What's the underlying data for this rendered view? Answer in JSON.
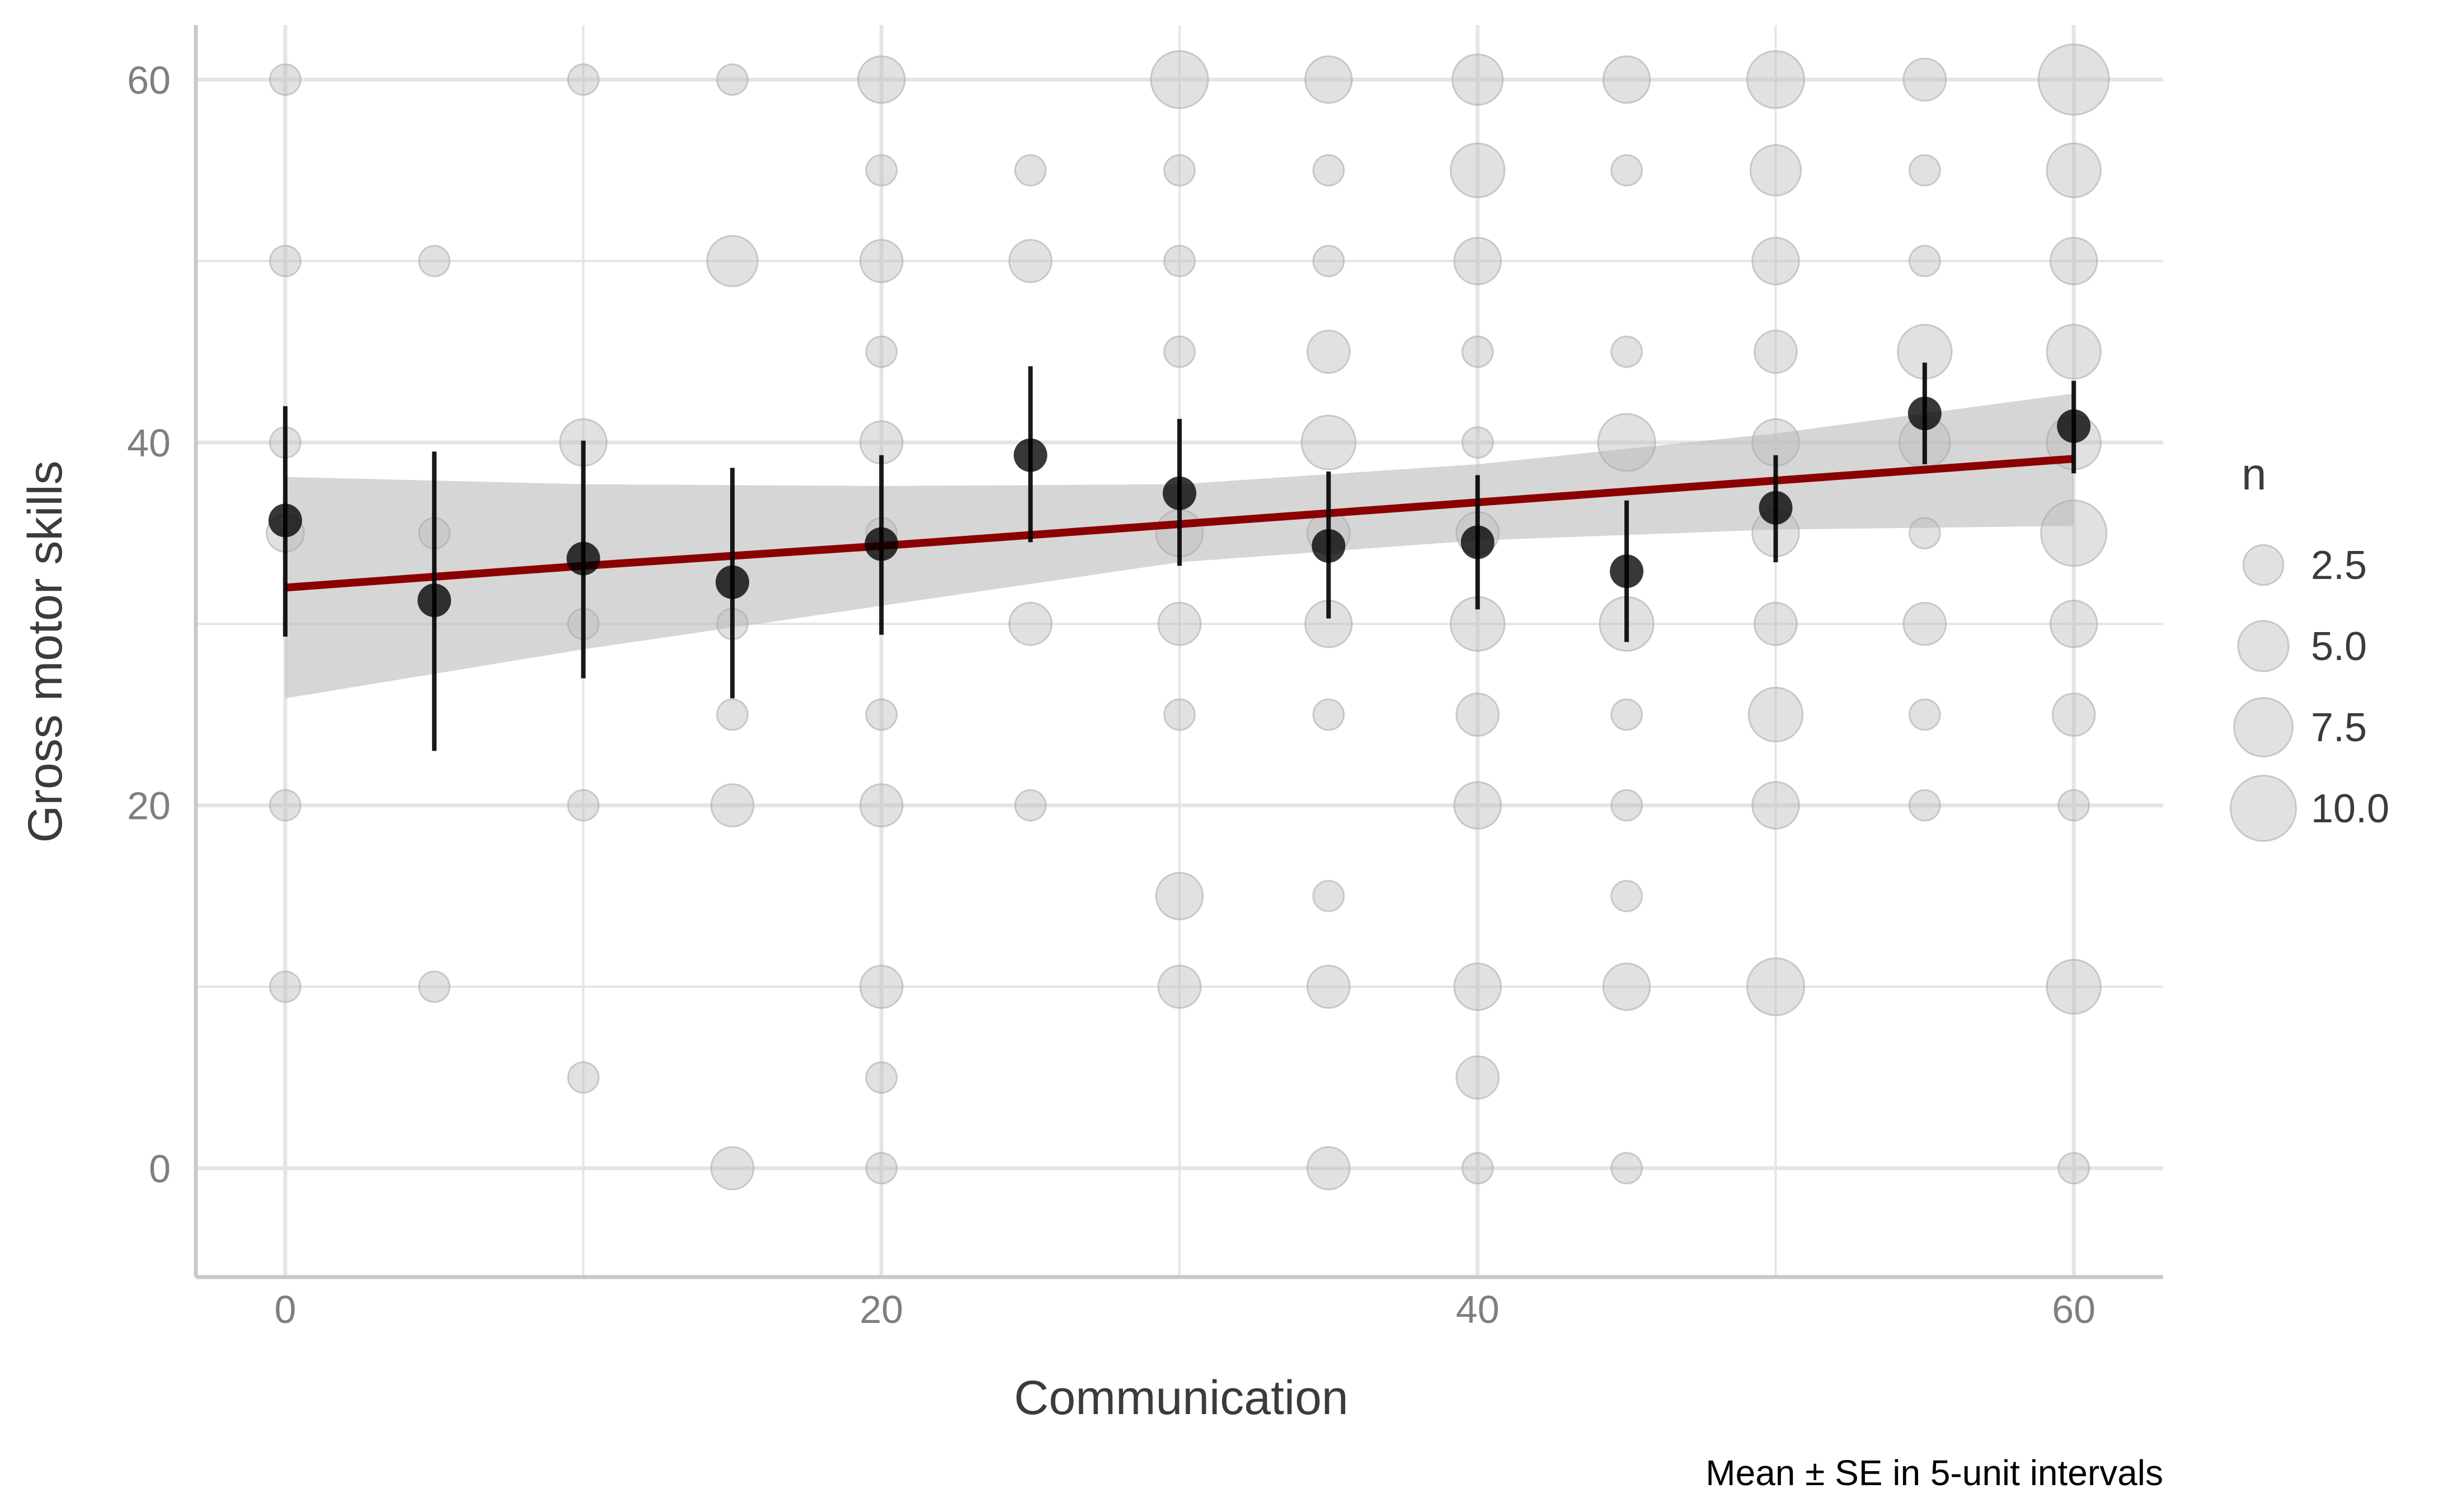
{
  "chart_data": {
    "type": "scatter",
    "title": "",
    "xlabel": "Communication",
    "ylabel": "Gross motor skills",
    "caption": "Mean ± SE in 5-unit intervals",
    "xlim": [
      -3,
      63
    ],
    "ylim": [
      -6,
      63
    ],
    "x_ticks": [
      0,
      20,
      40,
      60
    ],
    "y_ticks": [
      0,
      20,
      40,
      60
    ],
    "x_tick_labels": [
      "0",
      "20",
      "40",
      "60"
    ],
    "y_tick_labels": [
      "0",
      "20",
      "40",
      "60"
    ],
    "grid": true,
    "legend": {
      "title": "n",
      "position": "right",
      "entries": [
        {
          "label": "2.5",
          "n": 2.5
        },
        {
          "label": "5.0",
          "n": 5.0
        },
        {
          "label": "7.5",
          "n": 7.5
        },
        {
          "label": "10.0",
          "n": 10.0
        }
      ]
    },
    "colors": {
      "bubble": "#bdbdbd",
      "mean_point": "#000000",
      "error_bar": "#000000",
      "trend_line": "#8b0000",
      "confidence_band": "#bdbdbd",
      "grid": "#e5e5e5",
      "axis": "#c8c8c8"
    },
    "bubbles": [
      {
        "x": 0,
        "y": 60,
        "n": 1
      },
      {
        "x": 0,
        "y": 50,
        "n": 1
      },
      {
        "x": 0,
        "y": 40,
        "n": 1
      },
      {
        "x": 0,
        "y": 35,
        "n": 2
      },
      {
        "x": 0,
        "y": 20,
        "n": 1
      },
      {
        "x": 0,
        "y": 10,
        "n": 1
      },
      {
        "x": 5,
        "y": 50,
        "n": 1
      },
      {
        "x": 5,
        "y": 35,
        "n": 1
      },
      {
        "x": 5,
        "y": 10,
        "n": 1
      },
      {
        "x": 10,
        "y": 60,
        "n": 1
      },
      {
        "x": 10,
        "y": 40,
        "n": 4
      },
      {
        "x": 10,
        "y": 30,
        "n": 1
      },
      {
        "x": 10,
        "y": 20,
        "n": 1
      },
      {
        "x": 10,
        "y": 5,
        "n": 1
      },
      {
        "x": 15,
        "y": 60,
        "n": 1
      },
      {
        "x": 15,
        "y": 50,
        "n": 5
      },
      {
        "x": 15,
        "y": 30,
        "n": 1
      },
      {
        "x": 15,
        "y": 25,
        "n": 1
      },
      {
        "x": 15,
        "y": 20,
        "n": 3
      },
      {
        "x": 15,
        "y": 0,
        "n": 3
      },
      {
        "x": 20,
        "y": 60,
        "n": 4
      },
      {
        "x": 20,
        "y": 55,
        "n": 1
      },
      {
        "x": 20,
        "y": 50,
        "n": 3
      },
      {
        "x": 20,
        "y": 45,
        "n": 1
      },
      {
        "x": 20,
        "y": 40,
        "n": 3
      },
      {
        "x": 20,
        "y": 35,
        "n": 1
      },
      {
        "x": 20,
        "y": 25,
        "n": 1
      },
      {
        "x": 20,
        "y": 20,
        "n": 3
      },
      {
        "x": 20,
        "y": 10,
        "n": 3
      },
      {
        "x": 20,
        "y": 5,
        "n": 1
      },
      {
        "x": 20,
        "y": 0,
        "n": 1
      },
      {
        "x": 25,
        "y": 55,
        "n": 1
      },
      {
        "x": 25,
        "y": 50,
        "n": 3
      },
      {
        "x": 25,
        "y": 30,
        "n": 3
      },
      {
        "x": 25,
        "y": 20,
        "n": 1
      },
      {
        "x": 30,
        "y": 60,
        "n": 7
      },
      {
        "x": 30,
        "y": 55,
        "n": 1
      },
      {
        "x": 30,
        "y": 50,
        "n": 1
      },
      {
        "x": 30,
        "y": 45,
        "n": 1
      },
      {
        "x": 30,
        "y": 35,
        "n": 4
      },
      {
        "x": 30,
        "y": 30,
        "n": 3
      },
      {
        "x": 30,
        "y": 25,
        "n": 1
      },
      {
        "x": 30,
        "y": 15,
        "n": 4
      },
      {
        "x": 30,
        "y": 10,
        "n": 3
      },
      {
        "x": 35,
        "y": 60,
        "n": 4
      },
      {
        "x": 35,
        "y": 55,
        "n": 1
      },
      {
        "x": 35,
        "y": 50,
        "n": 1
      },
      {
        "x": 35,
        "y": 45,
        "n": 3
      },
      {
        "x": 35,
        "y": 40,
        "n": 6
      },
      {
        "x": 35,
        "y": 35,
        "n": 3
      },
      {
        "x": 35,
        "y": 30,
        "n": 4
      },
      {
        "x": 35,
        "y": 25,
        "n": 1
      },
      {
        "x": 35,
        "y": 15,
        "n": 1
      },
      {
        "x": 35,
        "y": 10,
        "n": 3
      },
      {
        "x": 35,
        "y": 0,
        "n": 3
      },
      {
        "x": 40,
        "y": 60,
        "n": 5
      },
      {
        "x": 40,
        "y": 55,
        "n": 6
      },
      {
        "x": 40,
        "y": 50,
        "n": 4
      },
      {
        "x": 40,
        "y": 45,
        "n": 1
      },
      {
        "x": 40,
        "y": 40,
        "n": 1
      },
      {
        "x": 40,
        "y": 35,
        "n": 3
      },
      {
        "x": 40,
        "y": 30,
        "n": 6
      },
      {
        "x": 40,
        "y": 25,
        "n": 3
      },
      {
        "x": 40,
        "y": 20,
        "n": 4
      },
      {
        "x": 40,
        "y": 10,
        "n": 4
      },
      {
        "x": 40,
        "y": 5,
        "n": 3
      },
      {
        "x": 40,
        "y": 0,
        "n": 1
      },
      {
        "x": 45,
        "y": 60,
        "n": 4
      },
      {
        "x": 45,
        "y": 55,
        "n": 1
      },
      {
        "x": 45,
        "y": 45,
        "n": 1
      },
      {
        "x": 45,
        "y": 40,
        "n": 7
      },
      {
        "x": 45,
        "y": 30,
        "n": 6
      },
      {
        "x": 45,
        "y": 25,
        "n": 1
      },
      {
        "x": 45,
        "y": 20,
        "n": 1
      },
      {
        "x": 45,
        "y": 15,
        "n": 1
      },
      {
        "x": 45,
        "y": 10,
        "n": 4
      },
      {
        "x": 45,
        "y": 0,
        "n": 1
      },
      {
        "x": 50,
        "y": 60,
        "n": 7
      },
      {
        "x": 50,
        "y": 55,
        "n": 5
      },
      {
        "x": 50,
        "y": 50,
        "n": 4
      },
      {
        "x": 50,
        "y": 45,
        "n": 3
      },
      {
        "x": 50,
        "y": 40,
        "n": 4
      },
      {
        "x": 50,
        "y": 35,
        "n": 4
      },
      {
        "x": 50,
        "y": 30,
        "n": 3
      },
      {
        "x": 50,
        "y": 25,
        "n": 6
      },
      {
        "x": 50,
        "y": 20,
        "n": 4
      },
      {
        "x": 50,
        "y": 10,
        "n": 7
      },
      {
        "x": 55,
        "y": 60,
        "n": 3
      },
      {
        "x": 55,
        "y": 55,
        "n": 1
      },
      {
        "x": 55,
        "y": 50,
        "n": 1
      },
      {
        "x": 55,
        "y": 45,
        "n": 6
      },
      {
        "x": 55,
        "y": 40,
        "n": 5
      },
      {
        "x": 55,
        "y": 35,
        "n": 1
      },
      {
        "x": 55,
        "y": 30,
        "n": 3
      },
      {
        "x": 55,
        "y": 25,
        "n": 1
      },
      {
        "x": 55,
        "y": 20,
        "n": 1
      },
      {
        "x": 60,
        "y": 60,
        "n": 12
      },
      {
        "x": 60,
        "y": 55,
        "n": 6
      },
      {
        "x": 60,
        "y": 50,
        "n": 4
      },
      {
        "x": 60,
        "y": 45,
        "n": 6
      },
      {
        "x": 60,
        "y": 40,
        "n": 6
      },
      {
        "x": 60,
        "y": 35,
        "n": 10
      },
      {
        "x": 60,
        "y": 30,
        "n": 4
      },
      {
        "x": 60,
        "y": 25,
        "n": 3
      },
      {
        "x": 60,
        "y": 20,
        "n": 1
      },
      {
        "x": 60,
        "y": 10,
        "n": 6
      },
      {
        "x": 60,
        "y": 0,
        "n": 1
      }
    ],
    "means": [
      {
        "x": 0,
        "y": 35.7,
        "lo": 29.3,
        "hi": 42.0
      },
      {
        "x": 5,
        "y": 31.3,
        "lo": 23.0,
        "hi": 39.5
      },
      {
        "x": 10,
        "y": 33.6,
        "lo": 27.0,
        "hi": 40.1
      },
      {
        "x": 15,
        "y": 32.3,
        "lo": 25.9,
        "hi": 38.6
      },
      {
        "x": 20,
        "y": 34.4,
        "lo": 29.4,
        "hi": 39.3
      },
      {
        "x": 25,
        "y": 39.3,
        "lo": 34.5,
        "hi": 44.2
      },
      {
        "x": 30,
        "y": 37.2,
        "lo": 33.2,
        "hi": 41.3
      },
      {
        "x": 35,
        "y": 34.3,
        "lo": 30.3,
        "hi": 38.4
      },
      {
        "x": 40,
        "y": 34.5,
        "lo": 30.8,
        "hi": 38.2
      },
      {
        "x": 45,
        "y": 32.9,
        "lo": 29.0,
        "hi": 36.8
      },
      {
        "x": 50,
        "y": 36.4,
        "lo": 33.4,
        "hi": 39.3
      },
      {
        "x": 55,
        "y": 41.6,
        "lo": 38.8,
        "hi": 44.4
      },
      {
        "x": 60,
        "y": 40.9,
        "lo": 38.3,
        "hi": 43.4
      }
    ],
    "trend": {
      "x": [
        0,
        10,
        20,
        30,
        40,
        50,
        60
      ],
      "y": [
        32.0,
        33.2,
        34.3,
        35.5,
        36.7,
        37.9,
        39.1
      ],
      "lo": [
        25.9,
        28.6,
        31.0,
        33.4,
        34.6,
        35.2,
        35.4
      ],
      "hi": [
        38.1,
        37.7,
        37.6,
        37.7,
        38.8,
        40.5,
        42.7
      ]
    }
  }
}
